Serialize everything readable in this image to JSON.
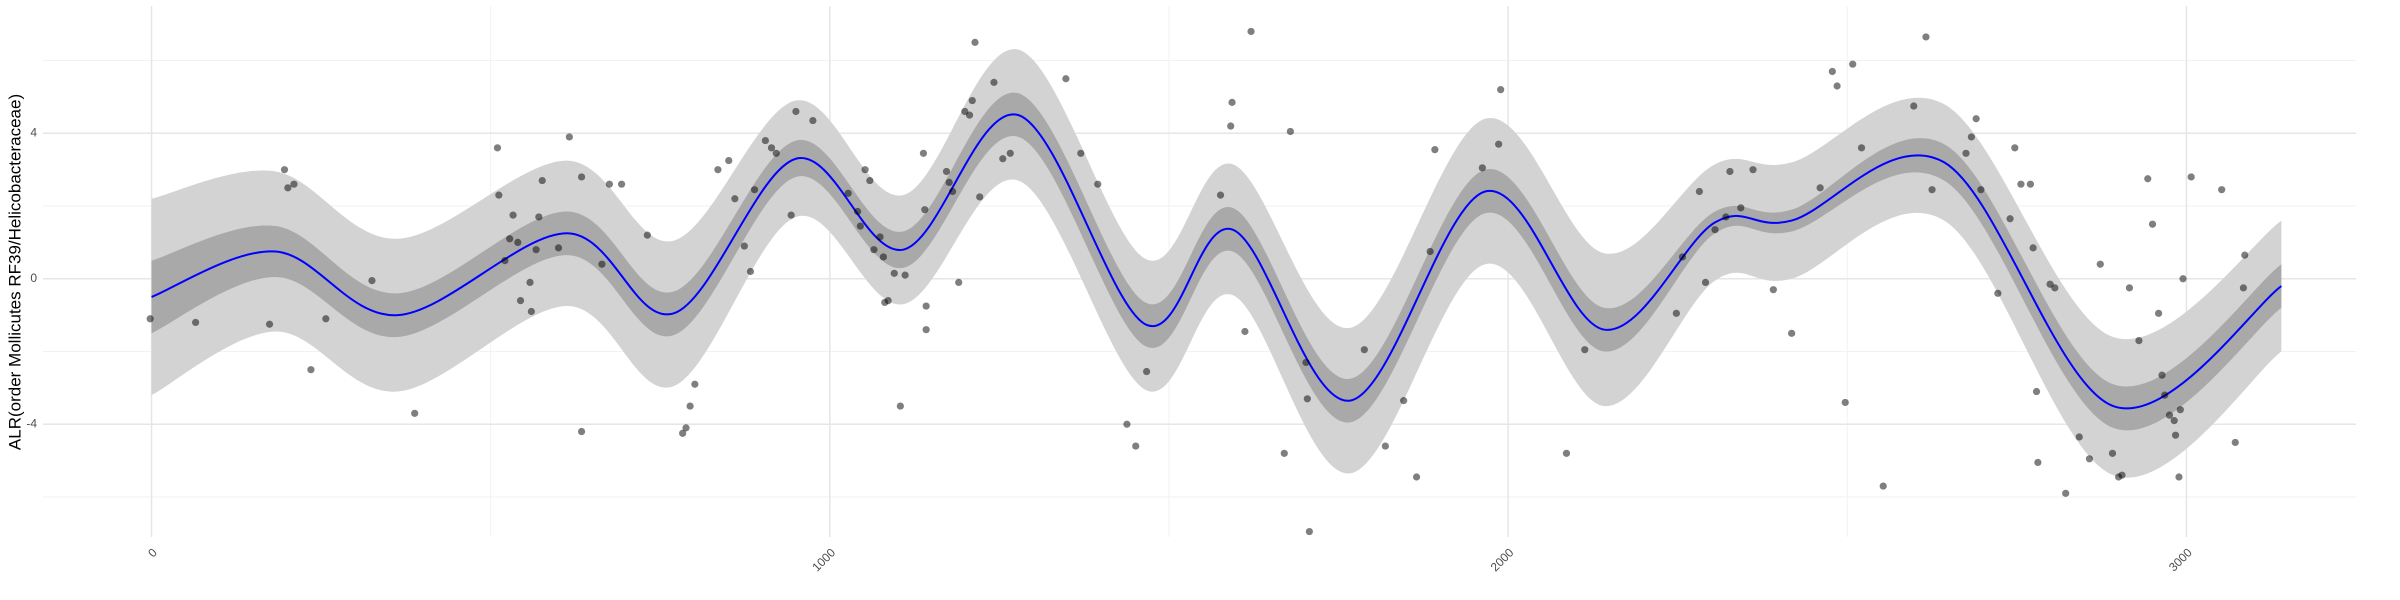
{
  "chart_data": {
    "type": "scatter",
    "y_label": "ALR(order Mollicutes RF39/Helicobacteraceae)",
    "xlim": [
      -160,
      3250
    ],
    "ylim": [
      -7.1,
      7.5
    ],
    "xticks": [
      0,
      1000,
      2000,
      3000
    ],
    "yticks": [
      -4,
      0,
      4
    ],
    "minor_xticks": [
      500,
      1500,
      2500
    ],
    "minor_yticks": [
      -6,
      -2,
      2,
      6
    ],
    "grid": true,
    "bands": [
      {
        "color": "#d3d3d3",
        "lower": [
          -3.2,
          -1.45,
          -3.1,
          -0.75,
          -2.95,
          1.7,
          -0.7,
          2.7,
          -3.05,
          -0.45,
          -5.35,
          0.4,
          -3.5,
          -0.05,
          0,
          1.6,
          -5.4,
          -2.0
        ],
        "upper": [
          2.2,
          2.95,
          1.1,
          3.25,
          1.05,
          4.9,
          2.3,
          6.3,
          0.55,
          3.15,
          -1.35,
          4.4,
          0.7,
          3.15,
          3.2,
          4.8,
          -1.6,
          1.6
        ]
      },
      {
        "color": "#a9a9a9",
        "lower": [
          -1.5,
          0.05,
          -1.6,
          0.65,
          -1.55,
          2.8,
          0.3,
          3.9,
          -1.85,
          0.75,
          -3.95,
          1.8,
          -2.0,
          1.25,
          1.3,
          2.7,
          -4.1,
          -0.8
        ],
        "upper": [
          0.5,
          1.45,
          -0.4,
          1.85,
          -0.35,
          3.8,
          1.3,
          5.1,
          -0.65,
          1.95,
          -2.75,
          3.0,
          -0.8,
          1.85,
          1.9,
          3.7,
          -2.9,
          0.4
        ]
      }
    ],
    "smooth": {
      "color": "#0000ff",
      "x": [
        0,
        183,
        363,
        612,
        770,
        950,
        1108,
        1278,
        1465,
        1594,
        1767,
        1966,
        2142,
        2305,
        2418,
        2643,
        2892,
        3140
      ],
      "values": [
        -0.5,
        0.75,
        -1.0,
        1.25,
        -0.95,
        3.3,
        0.8,
        4.5,
        -1.25,
        1.35,
        -3.35,
        2.4,
        -1.4,
        1.55,
        1.6,
        3.2,
        -3.5,
        -0.2
      ]
    },
    "points": {
      "color": "#000000",
      "x": [
        -2,
        65,
        174,
        196,
        201,
        210,
        235,
        257,
        325,
        388,
        510,
        512,
        521,
        528,
        533,
        540,
        544,
        558,
        560,
        567,
        571,
        576,
        600,
        616,
        634,
        634,
        664,
        675,
        693,
        731,
        783,
        788,
        794,
        801,
        835,
        851,
        860,
        874,
        883,
        889,
        905,
        914,
        921,
        943,
        950,
        975,
        1027,
        1041,
        1045,
        1052,
        1059,
        1065,
        1074,
        1079,
        1081,
        1086,
        1095,
        1104,
        1111,
        1138,
        1140,
        1142,
        1142,
        1172,
        1176,
        1181,
        1190,
        1199,
        1206,
        1210,
        1214,
        1221,
        1242,
        1255,
        1266,
        1348,
        1370,
        1395,
        1438,
        1451,
        1467,
        1576,
        1591,
        1593,
        1612,
        1621,
        1670,
        1679,
        1702,
        1704,
        1707,
        1788,
        1819,
        1846,
        1865,
        1885,
        1892,
        1962,
        1986,
        1989,
        2113,
        2086,
        2248,
        2257,
        2282,
        2291,
        2305,
        2321,
        2327,
        2343,
        2361,
        2391,
        2418,
        2460,
        2478,
        2485,
        2497,
        2508,
        2521,
        2553,
        2598,
        2616,
        2625,
        2675,
        2683,
        2690,
        2697,
        2722,
        2740,
        2747,
        2756,
        2770,
        2774,
        2779,
        2781,
        2799,
        2806,
        2822,
        2842,
        2857,
        2873,
        2891,
        2900,
        2905,
        2916,
        2930,
        2943,
        2950,
        2959,
        2964,
        2968,
        2975,
        2982,
        2984,
        2989,
        2991,
        2995,
        3007,
        3052,
        3072,
        3086,
        3084
      ],
      "y": [
        -1.1,
        -1.2,
        -1.25,
        3.0,
        2.5,
        2.6,
        -2.5,
        -1.1,
        -0.05,
        -3.7,
        3.6,
        2.3,
        0.5,
        1.1,
        1.75,
        1.0,
        -0.6,
        -0.1,
        -0.9,
        0.8,
        1.7,
        2.7,
        0.85,
        3.9,
        -4.2,
        2.8,
        0.4,
        2.6,
        2.6,
        1.2,
        -4.25,
        -4.1,
        -3.5,
        -2.9,
        3.0,
        3.25,
        2.2,
        0.9,
        0.2,
        2.45,
        3.8,
        3.6,
        3.45,
        1.75,
        4.6,
        4.35,
        2.35,
        1.85,
        1.45,
        3.0,
        2.7,
        0.8,
        1.15,
        0.6,
        -0.65,
        -0.6,
        0.15,
        -3.5,
        0.1,
        3.45,
        1.9,
        -0.75,
        -1.4,
        2.95,
        2.65,
        2.4,
        -0.1,
        4.6,
        4.5,
        4.9,
        6.5,
        2.25,
        5.4,
        3.3,
        3.45,
        5.5,
        3.45,
        2.6,
        -4.0,
        -4.6,
        -2.55,
        2.3,
        4.2,
        4.85,
        -1.45,
        6.8,
        -4.8,
        4.05,
        -2.3,
        -3.3,
        -6.95,
        -1.95,
        -4.6,
        -3.35,
        -5.45,
        0.75,
        3.55,
        3.05,
        3.7,
        5.2,
        -1.95,
        -4.8,
        -0.95,
        0.6,
        2.4,
        -0.1,
        1.35,
        1.7,
        2.95,
        1.95,
        3.0,
        -0.3,
        -1.5,
        2.5,
        5.7,
        5.3,
        -3.4,
        5.9,
        3.6,
        -5.7,
        4.75,
        6.65,
        2.45,
        3.45,
        3.9,
        4.4,
        2.45,
        -0.4,
        1.65,
        3.6,
        2.6,
        2.6,
        0.85,
        -3.1,
        -5.05,
        -0.15,
        -0.25,
        -5.9,
        -4.35,
        -4.95,
        0.4,
        -4.8,
        -5.45,
        -5.4,
        -0.25,
        -1.7,
        2.75,
        1.5,
        -0.95,
        -2.65,
        -3.2,
        -3.75,
        -3.9,
        -4.3,
        -5.45,
        -3.6,
        0.0,
        2.8,
        2.45,
        -4.5,
        0.65,
        -0.25
      ]
    }
  }
}
